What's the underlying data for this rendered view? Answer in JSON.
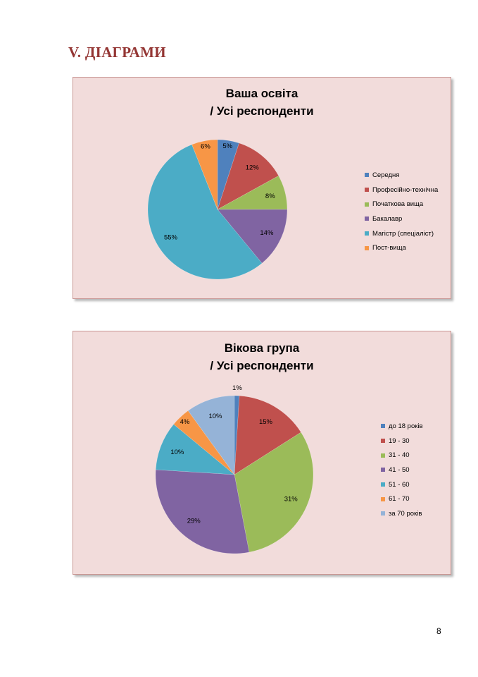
{
  "heading": "V. ДІАГРАМИ",
  "page_number": "8",
  "chart_data": [
    {
      "type": "pie",
      "title": [
        "Ваша освіта",
        "/ Усі респонденти"
      ],
      "categories": [
        "Середня",
        "Професійно-технічна",
        "Початкова вища",
        "Бакалавр",
        "Магістр (спеціаліст)",
        "Пост-вища"
      ],
      "values": [
        5,
        12,
        8,
        14,
        55,
        6
      ],
      "labels": [
        "5%",
        "12%",
        "8%",
        "14%",
        "55%",
        "6%"
      ],
      "colors": [
        "#4f81bd",
        "#c0504d",
        "#9bbb59",
        "#8064a2",
        "#4bacc6",
        "#f79646"
      ],
      "legend_position": "right",
      "start": "top, clockwise"
    },
    {
      "type": "pie",
      "title": [
        "Вікова група",
        "/ Усі респонденти"
      ],
      "categories": [
        "до 18 років",
        "19 - 30",
        "31 - 40",
        "41 - 50",
        "51 - 60",
        "61 - 70",
        "за 70 років"
      ],
      "values": [
        1,
        15,
        31,
        29,
        10,
        4,
        10
      ],
      "labels": [
        "1%",
        "15%",
        "31%",
        "29%",
        "10%",
        "4%",
        "10%"
      ],
      "colors": [
        "#4f81bd",
        "#c0504d",
        "#9bbb59",
        "#8064a2",
        "#4bacc6",
        "#f79646",
        "#95b3d7"
      ],
      "legend_position": "right",
      "start": "top, clockwise"
    }
  ]
}
